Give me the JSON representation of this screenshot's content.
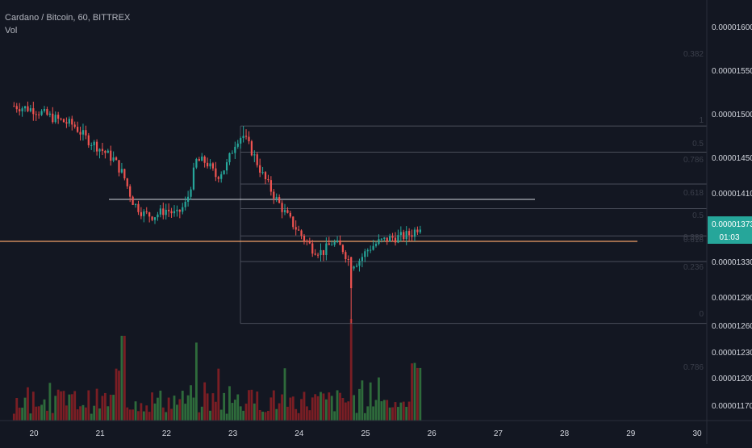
{
  "header": {
    "symbol_line": "Cardano / Bitcoin, 60, BITTREX",
    "indicator_label": "Vol"
  },
  "colors": {
    "background": "#131722",
    "up": "#26a69a",
    "down": "#ef5350",
    "vol_up": "#2e6b3b",
    "vol_down": "#7a1e24",
    "fib_line": "#4a4e5a",
    "fib_label": "#3a3e4a",
    "hline_white": "#d1d4dc",
    "hline_orange": "#f0a067",
    "price_tag": "#26a69a",
    "axis_text": "#d1d4dc",
    "axis_border": "#2a2e39"
  },
  "price_tag": {
    "price": "0.00001373",
    "countdown": "01:03"
  },
  "chart_data": {
    "type": "candlestick",
    "x_axis": {
      "ticks": [
        "20",
        "21",
        "22",
        "23",
        "24",
        "25",
        "26",
        "27",
        "28",
        "29",
        "30"
      ],
      "range_days": [
        19.7,
        30.05
      ]
    },
    "y_axis": {
      "ticks": [
        "0.00001600",
        "0.00001550",
        "0.00001500",
        "0.00001450",
        "0.00001410",
        "0.00001373",
        "0.00001330",
        "0.00001290",
        "0.00001260",
        "0.00001230",
        "0.00001200",
        "0.00001170"
      ]
    },
    "fib_retracement": {
      "labels": [
        "0.382",
        "1",
        "0.5",
        "0.786",
        "0.618",
        "0.5",
        "0.382",
        "0.618",
        "0.236",
        "0",
        "0.786"
      ],
      "levels": [
        1,
        0.786,
        0.618,
        0.5,
        0.382,
        0.236,
        0
      ]
    },
    "horizontal_lines": [
      "white",
      "orange"
    ],
    "volume_max_units": 120,
    "path_points": [
      [
        19.7,
        1509
      ],
      [
        20.0,
        1505
      ],
      [
        20.3,
        1495
      ],
      [
        20.6,
        1487
      ],
      [
        20.8,
        1471
      ],
      [
        21.0,
        1460
      ],
      [
        21.2,
        1448
      ],
      [
        21.35,
        1430
      ],
      [
        21.5,
        1398
      ],
      [
        21.65,
        1385
      ],
      [
        21.8,
        1382
      ],
      [
        22.0,
        1390
      ],
      [
        22.15,
        1383
      ],
      [
        22.3,
        1398
      ],
      [
        22.45,
        1446
      ],
      [
        22.6,
        1445
      ],
      [
        22.75,
        1428
      ],
      [
        22.9,
        1440
      ],
      [
        23.05,
        1470
      ],
      [
        23.15,
        1476
      ],
      [
        23.3,
        1455
      ],
      [
        23.45,
        1430
      ],
      [
        23.6,
        1410
      ],
      [
        23.75,
        1390
      ],
      [
        23.9,
        1373
      ],
      [
        24.05,
        1358
      ],
      [
        24.2,
        1345
      ],
      [
        24.35,
        1340
      ],
      [
        24.5,
        1352
      ],
      [
        24.65,
        1345
      ],
      [
        24.78,
        1327
      ],
      [
        24.9,
        1331
      ],
      [
        25.05,
        1345
      ],
      [
        25.2,
        1352
      ],
      [
        25.4,
        1357
      ],
      [
        25.55,
        1358
      ],
      [
        25.7,
        1362
      ],
      [
        25.85,
        1373
      ]
    ]
  }
}
